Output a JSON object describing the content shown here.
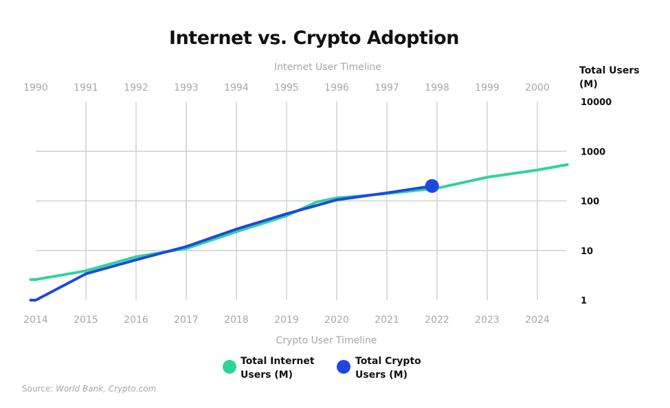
{
  "chart_data": {
    "type": "line",
    "title": "Internet vs. Crypto Adoption",
    "top_axis_label": "Internet User Timeline",
    "bottom_axis_label": "Crypto User Timeline",
    "right_axis_label_line1": "Total Users",
    "right_axis_label_line2": "(M)",
    "top_categories": [
      "1990",
      "1991",
      "1992",
      "1993",
      "1994",
      "1995",
      "1996",
      "1997",
      "1998",
      "1999",
      "2000"
    ],
    "bottom_categories": [
      "2014",
      "2015",
      "2016",
      "2017",
      "2018",
      "2019",
      "2020",
      "2021",
      "2022",
      "2023",
      "2024"
    ],
    "y_scale": "log",
    "ylim": [
      1,
      10000
    ],
    "y_ticks": [
      "10000",
      "1000",
      "100",
      "10",
      "1"
    ],
    "y_tick_values": [
      10000,
      1000,
      100,
      10,
      1
    ],
    "series": [
      {
        "name": "Total Internet Users (M)",
        "color": "#2fd498",
        "x": [
          -0.1,
          0,
          1,
          2,
          3,
          4,
          5,
          5.6,
          6,
          7,
          8,
          9,
          10,
          10.6
        ],
        "values": [
          2.6,
          2.6,
          3.9,
          7.5,
          11,
          24,
          50,
          95,
          115,
          140,
          180,
          300,
          420,
          540
        ]
      },
      {
        "name": "Total Crypto Users (M)",
        "color": "#1c48e0",
        "x": [
          -0.1,
          0,
          1,
          2,
          3,
          4,
          5,
          6,
          7,
          7.9
        ],
        "values": [
          1.0,
          1.0,
          3.4,
          6.5,
          12,
          27,
          55,
          105,
          145,
          200
        ],
        "end_marker": true
      }
    ],
    "legend": [
      {
        "line1": "Total Internet",
        "line2": "Users (M)",
        "color": "#2fd498"
      },
      {
        "line1": "Total Crypto",
        "line2": "Users (M)",
        "color": "#1c48e0"
      }
    ],
    "source_prefix": "Source: ",
    "source_text": "World Bank, Crypto.com"
  }
}
